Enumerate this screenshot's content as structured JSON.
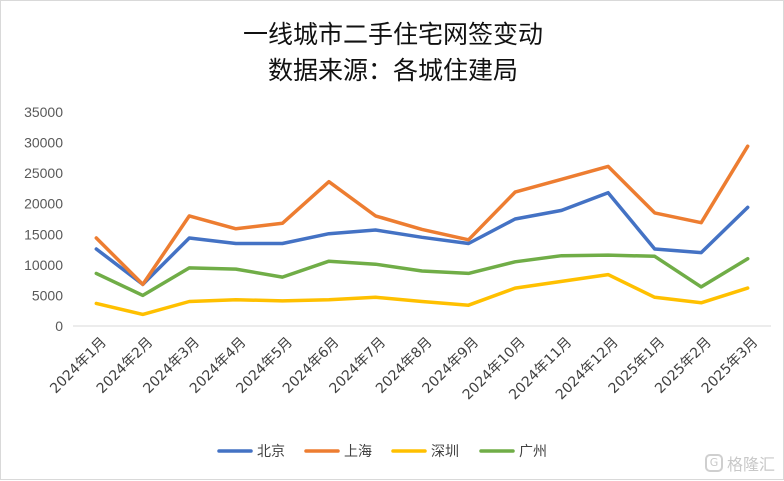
{
  "chart_data": {
    "type": "line",
    "title": "一线城市二手住宅网签变动",
    "subtitle": "数据来源：各城住建局",
    "categories": [
      "2024年1月",
      "2024年2月",
      "2024年3月",
      "2024年4月",
      "2024年5月",
      "2024年6月",
      "2024年7月",
      "2024年8月",
      "2024年9月",
      "2024年10月",
      "2024年11月",
      "2024年12月",
      "2025年1月",
      "2025年2月",
      "2025年3月"
    ],
    "yticks": [
      "0",
      "5000",
      "10000",
      "15000",
      "20000",
      "25000",
      "30000",
      "35000"
    ],
    "ylim": [
      0,
      35000
    ],
    "series": [
      {
        "name": "北京",
        "color": "#4472c4",
        "values": [
          12600,
          6800,
          14400,
          13500,
          13500,
          15100,
          15700,
          14500,
          13500,
          17500,
          18900,
          21800,
          12600,
          12000,
          19400
        ]
      },
      {
        "name": "上海",
        "color": "#ed7d31",
        "values": [
          14400,
          6800,
          18000,
          15900,
          16800,
          23600,
          18000,
          15800,
          14100,
          21900,
          24000,
          26100,
          18500,
          16900,
          29400
        ]
      },
      {
        "name": "深圳",
        "color": "#ffc000",
        "values": [
          3700,
          1900,
          4000,
          4300,
          4100,
          4300,
          4700,
          4000,
          3400,
          6200,
          7300,
          8400,
          4700,
          3800,
          6200
        ]
      },
      {
        "name": "广州",
        "color": "#70ad47",
        "values": [
          8600,
          5000,
          9500,
          9300,
          8000,
          10600,
          10100,
          9000,
          8600,
          10500,
          11500,
          11600,
          11400,
          6400,
          11000
        ]
      }
    ],
    "grid": false,
    "legend": "bottom"
  },
  "watermark": {
    "text": "格隆汇",
    "icon_glyph": "G"
  }
}
